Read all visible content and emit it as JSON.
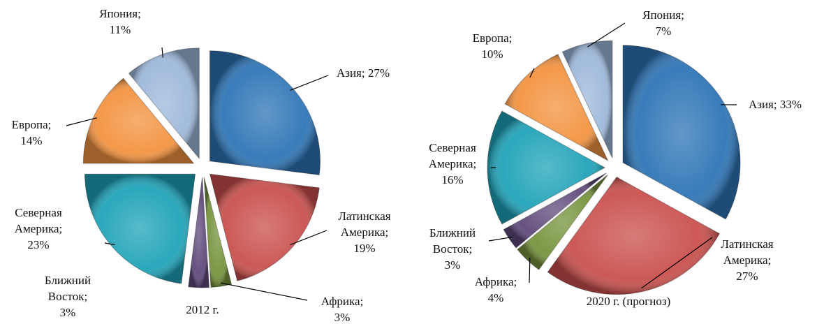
{
  "chart_data": [
    {
      "type": "pie",
      "title": "2012 г.",
      "categories": [
        "Азия;",
        "Латинская Америка;",
        "Африка;",
        "Ближний Восток;",
        "Северная Америка;",
        "Европа;",
        "Япония;"
      ],
      "values": [
        27,
        19,
        3,
        3,
        23,
        14,
        11
      ],
      "value_labels": [
        "27%",
        "19%",
        "3%",
        "3%",
        "23%",
        "14%",
        "11%"
      ],
      "colors": [
        "#2e75b6",
        "#c9504d",
        "#76933c",
        "#5f4a7b",
        "#1fa3b8",
        "#f39340",
        "#9db8da"
      ]
    },
    {
      "type": "pie",
      "title": "2020 г. (прогноз)",
      "categories": [
        "Азия;",
        "Латинская Америка;",
        "Африка;",
        "Ближний Восток;",
        "Северная Америка;",
        "Европа;",
        "Япония;"
      ],
      "values": [
        33,
        27,
        4,
        3,
        16,
        10,
        7
      ],
      "value_labels": [
        "33%",
        "27%",
        "4%",
        "3%",
        "16%",
        "10%",
        "7%"
      ],
      "colors": [
        "#2e75b6",
        "#c9504d",
        "#76933c",
        "#5f4a7b",
        "#1fa3b8",
        "#f39340",
        "#9db8da"
      ]
    }
  ]
}
